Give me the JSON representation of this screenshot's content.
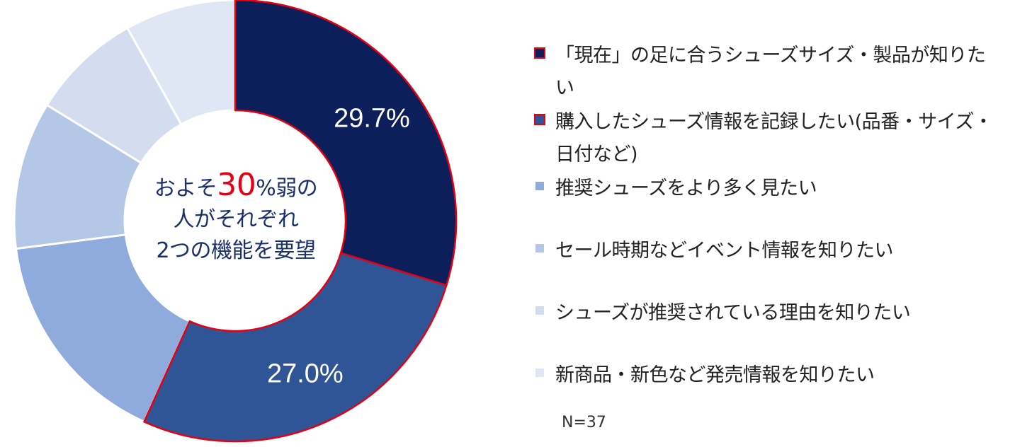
{
  "chart_data": {
    "type": "donut",
    "n_label": "N=37",
    "center_text": {
      "line1_prefix": "およそ",
      "line1_highlight": "30",
      "line1_suffix": "%弱の",
      "line2": "人がそれぞれ",
      "line3": "2つの機能を要望"
    },
    "slices": [
      {
        "label": "「現在」の足に合うシューズサイズ・製品が知りたい",
        "value": 29.7,
        "display": "29.7%",
        "color": "#0c1f5b",
        "highlight": true
      },
      {
        "label": "購入したシューズ情報を記録したい(品番・サイズ・日付など)",
        "value": 27.0,
        "display": "27.0%",
        "color": "#2f5597",
        "highlight": true
      },
      {
        "label": "推奨シューズをより多く見たい",
        "value": 16.2,
        "display": "",
        "color": "#8faadc",
        "highlight": false
      },
      {
        "label": "セール時期などイベント情報を知りたい",
        "value": 10.8,
        "display": "",
        "color": "#b4c7e7",
        "highlight": false
      },
      {
        "label": "シューズが推奨されている理由を知りたい",
        "value": 8.1,
        "display": "",
        "color": "#d4ddef",
        "highlight": false
      },
      {
        "label": "新商品・新色など発売情報を知りたい",
        "value": 8.1,
        "display": "",
        "color": "#dfe7f5",
        "highlight": false
      }
    ]
  }
}
